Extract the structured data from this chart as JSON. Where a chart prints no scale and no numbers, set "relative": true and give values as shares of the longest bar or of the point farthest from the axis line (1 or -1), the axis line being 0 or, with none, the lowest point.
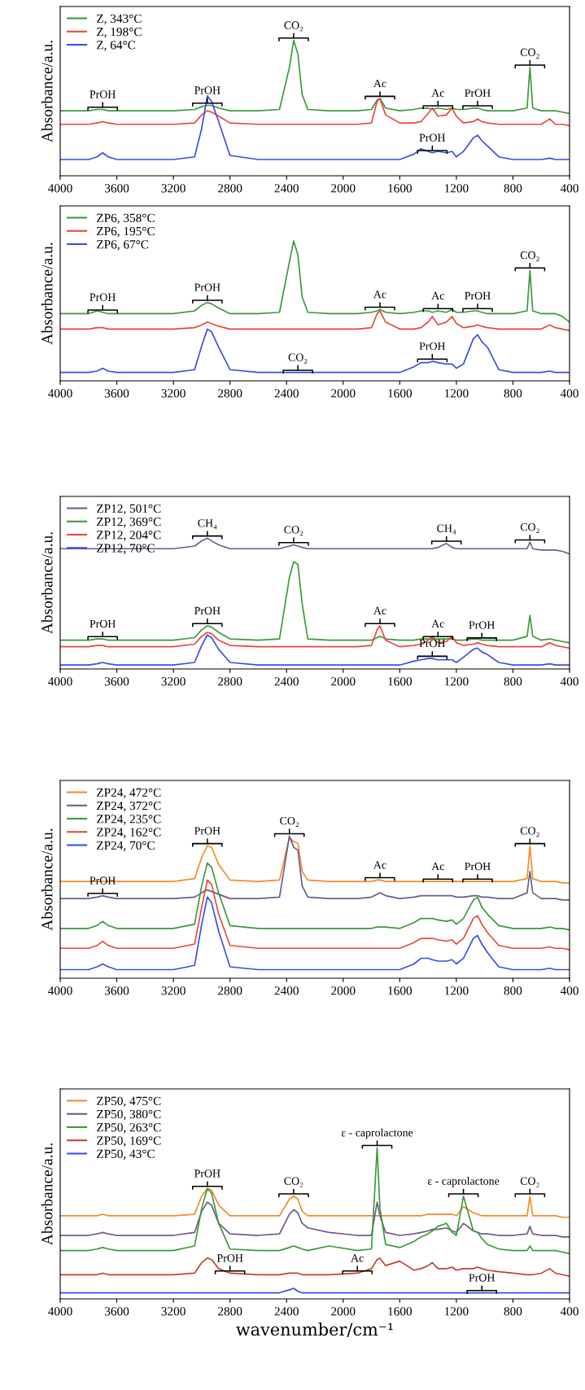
{
  "chart_data": [
    {
      "type": "line",
      "relative": true,
      "ylabel": "Absorbance/a.u.",
      "legend": "top left",
      "xlim": [
        4000,
        400
      ],
      "xticks": [
        4000,
        3600,
        3200,
        2800,
        2400,
        2000,
        1600,
        1200,
        800,
        400
      ],
      "x": [
        4000,
        3800,
        3740,
        3700,
        3660,
        3600,
        3400,
        3200,
        3050,
        3000,
        2960,
        2930,
        2880,
        2800,
        2600,
        2450,
        2380,
        2350,
        2320,
        2290,
        2250,
        2100,
        1900,
        1800,
        1760,
        1740,
        1700,
        1600,
        1500,
        1450,
        1400,
        1370,
        1330,
        1270,
        1230,
        1200,
        1150,
        1080,
        1050,
        1020,
        980,
        900,
        800,
        700,
        680,
        660,
        600,
        540,
        500,
        450,
        400
      ],
      "series": [
        {
          "name": "Z, 343°C",
          "color": "#3a9a3a",
          "values": [
            0.48,
            0.48,
            0.49,
            0.49,
            0.48,
            0.48,
            0.48,
            0.48,
            0.49,
            0.51,
            0.52,
            0.52,
            0.5,
            0.48,
            0.48,
            0.49,
            0.8,
            1.0,
            0.9,
            0.6,
            0.49,
            0.48,
            0.48,
            0.49,
            0.56,
            0.57,
            0.5,
            0.48,
            0.49,
            0.5,
            0.5,
            0.49,
            0.5,
            0.49,
            0.5,
            0.49,
            0.49,
            0.5,
            0.5,
            0.49,
            0.48,
            0.48,
            0.48,
            0.5,
            0.8,
            0.5,
            0.48,
            0.48,
            0.48,
            0.47,
            0.46
          ]
        },
        {
          "name": "Z, 198°C",
          "color": "#e8483a",
          "values": [
            0.38,
            0.38,
            0.39,
            0.4,
            0.39,
            0.38,
            0.38,
            0.38,
            0.39,
            0.45,
            0.48,
            0.47,
            0.44,
            0.39,
            0.38,
            0.38,
            0.38,
            0.38,
            0.38,
            0.38,
            0.38,
            0.38,
            0.38,
            0.39,
            0.55,
            0.57,
            0.45,
            0.39,
            0.39,
            0.4,
            0.46,
            0.5,
            0.44,
            0.45,
            0.5,
            0.44,
            0.39,
            0.4,
            0.42,
            0.4,
            0.39,
            0.38,
            0.38,
            0.38,
            0.38,
            0.38,
            0.38,
            0.42,
            0.38,
            0.38,
            0.37
          ]
        },
        {
          "name": "Z, 64°C",
          "color": "#3a4de8",
          "values": [
            0.12,
            0.12,
            0.14,
            0.17,
            0.14,
            0.12,
            0.12,
            0.12,
            0.14,
            0.35,
            0.59,
            0.55,
            0.4,
            0.15,
            0.12,
            0.12,
            0.12,
            0.12,
            0.12,
            0.12,
            0.12,
            0.12,
            0.12,
            0.12,
            0.12,
            0.12,
            0.12,
            0.12,
            0.16,
            0.2,
            0.18,
            0.17,
            0.18,
            0.17,
            0.18,
            0.14,
            0.18,
            0.28,
            0.3,
            0.26,
            0.22,
            0.14,
            0.12,
            0.12,
            0.12,
            0.12,
            0.12,
            0.13,
            0.12,
            0.12,
            0.12
          ]
        }
      ],
      "annotations": [
        {
          "text": "PrOH",
          "x": 3700,
          "y": 0.49
        },
        {
          "text": "PrOH",
          "x": 2960,
          "y": 0.52
        },
        {
          "text": "CO₂",
          "x": 2350,
          "y": 1.0
        },
        {
          "text": "Ac",
          "x": 1740,
          "y": 0.57
        },
        {
          "text": "Ac",
          "x": 1330,
          "y": 0.5
        },
        {
          "text": "PrOH",
          "x": 1050,
          "y": 0.5
        },
        {
          "text": "CO₂",
          "x": 680,
          "y": 0.8
        },
        {
          "text": "PrOH",
          "x": 1370,
          "y": 0.17
        }
      ]
    },
    {
      "type": "line",
      "relative": true,
      "ylabel": "Absorbance/a.u.",
      "legend": "top left",
      "xlim": [
        4000,
        400
      ],
      "xticks": [
        4000,
        3600,
        3200,
        2800,
        2400,
        2000,
        1600,
        1200,
        800,
        400
      ],
      "x": [
        4000,
        3800,
        3740,
        3700,
        3660,
        3600,
        3400,
        3200,
        3050,
        3000,
        2960,
        2930,
        2880,
        2800,
        2600,
        2450,
        2380,
        2350,
        2320,
        2290,
        2250,
        2100,
        1900,
        1800,
        1760,
        1740,
        1700,
        1600,
        1500,
        1450,
        1400,
        1370,
        1330,
        1270,
        1230,
        1200,
        1150,
        1080,
        1050,
        1020,
        980,
        900,
        800,
        700,
        680,
        660,
        600,
        540,
        500,
        450,
        400
      ],
      "series": [
        {
          "name": "ZP6, 358°C",
          "color": "#3a9a3a",
          "values": [
            0.48,
            0.48,
            0.5,
            0.49,
            0.48,
            0.48,
            0.48,
            0.48,
            0.5,
            0.54,
            0.56,
            0.55,
            0.52,
            0.48,
            0.48,
            0.49,
            0.85,
            1.0,
            0.9,
            0.6,
            0.49,
            0.48,
            0.48,
            0.49,
            0.5,
            0.51,
            0.49,
            0.48,
            0.49,
            0.5,
            0.5,
            0.49,
            0.5,
            0.49,
            0.51,
            0.49,
            0.49,
            0.5,
            0.5,
            0.49,
            0.48,
            0.48,
            0.48,
            0.5,
            0.79,
            0.5,
            0.48,
            0.48,
            0.48,
            0.46,
            0.42
          ]
        },
        {
          "name": "ZP6, 195°C",
          "color": "#e8483a",
          "values": [
            0.37,
            0.37,
            0.38,
            0.38,
            0.37,
            0.37,
            0.37,
            0.37,
            0.38,
            0.4,
            0.42,
            0.41,
            0.39,
            0.37,
            0.37,
            0.37,
            0.37,
            0.37,
            0.37,
            0.37,
            0.37,
            0.37,
            0.37,
            0.38,
            0.48,
            0.5,
            0.42,
            0.37,
            0.37,
            0.38,
            0.42,
            0.46,
            0.4,
            0.42,
            0.46,
            0.41,
            0.38,
            0.39,
            0.4,
            0.39,
            0.38,
            0.37,
            0.37,
            0.37,
            0.37,
            0.37,
            0.37,
            0.4,
            0.38,
            0.37,
            0.36
          ]
        },
        {
          "name": "ZP6, 67°C",
          "color": "#3a4de8",
          "values": [
            0.06,
            0.06,
            0.07,
            0.09,
            0.07,
            0.06,
            0.06,
            0.06,
            0.08,
            0.25,
            0.37,
            0.35,
            0.24,
            0.08,
            0.06,
            0.06,
            0.06,
            0.06,
            0.06,
            0.06,
            0.06,
            0.06,
            0.06,
            0.06,
            0.06,
            0.06,
            0.06,
            0.06,
            0.1,
            0.13,
            0.13,
            0.14,
            0.13,
            0.12,
            0.12,
            0.09,
            0.12,
            0.3,
            0.33,
            0.28,
            0.24,
            0.08,
            0.06,
            0.06,
            0.06,
            0.06,
            0.06,
            0.07,
            0.06,
            0.06,
            0.06
          ]
        }
      ],
      "annotations": [
        {
          "text": "PrOH",
          "x": 3700,
          "y": 0.49
        },
        {
          "text": "PrOH",
          "x": 2960,
          "y": 0.56
        },
        {
          "text": "CO₂",
          "x": 2320,
          "y": 0.06
        },
        {
          "text": "Ac",
          "x": 1740,
          "y": 0.51
        },
        {
          "text": "Ac",
          "x": 1330,
          "y": 0.5
        },
        {
          "text": "PrOH",
          "x": 1050,
          "y": 0.5
        },
        {
          "text": "CO₂",
          "x": 680,
          "y": 0.79
        },
        {
          "text": "PrOH",
          "x": 1370,
          "y": 0.14
        }
      ]
    },
    {
      "type": "line",
      "relative": true,
      "ylabel": "Absorbance/a.u.",
      "legend": "top left",
      "xlim": [
        4000,
        400
      ],
      "xticks": [
        4000,
        3600,
        3200,
        2800,
        2400,
        2000,
        1600,
        1200,
        800,
        400
      ],
      "x": [
        4000,
        3800,
        3740,
        3700,
        3660,
        3600,
        3400,
        3200,
        3050,
        3000,
        2960,
        2930,
        2880,
        2800,
        2600,
        2450,
        2380,
        2350,
        2320,
        2290,
        2250,
        2100,
        1900,
        1800,
        1760,
        1740,
        1700,
        1600,
        1500,
        1450,
        1400,
        1370,
        1330,
        1270,
        1230,
        1200,
        1150,
        1080,
        1050,
        1020,
        980,
        900,
        800,
        700,
        680,
        660,
        600,
        540,
        500,
        450,
        400
      ],
      "series": [
        {
          "name": "ZP12, 501°C",
          "color": "#6e5a8c",
          "values": [
            0.92,
            0.92,
            0.92,
            0.92,
            0.92,
            0.92,
            0.92,
            0.92,
            0.94,
            0.98,
            1.0,
            0.98,
            0.95,
            0.92,
            0.92,
            0.92,
            0.94,
            0.95,
            0.94,
            0.93,
            0.92,
            0.92,
            0.92,
            0.92,
            0.92,
            0.92,
            0.92,
            0.92,
            0.92,
            0.92,
            0.92,
            0.92,
            0.93,
            0.96,
            0.93,
            0.92,
            0.92,
            0.92,
            0.92,
            0.92,
            0.92,
            0.92,
            0.92,
            0.92,
            0.97,
            0.92,
            0.91,
            0.91,
            0.91,
            0.9,
            0.88
          ]
        },
        {
          "name": "ZP12, 369°C",
          "color": "#3a9a3a",
          "values": [
            0.22,
            0.22,
            0.23,
            0.23,
            0.22,
            0.22,
            0.22,
            0.22,
            0.24,
            0.3,
            0.33,
            0.32,
            0.28,
            0.23,
            0.22,
            0.23,
            0.7,
            0.82,
            0.8,
            0.5,
            0.23,
            0.22,
            0.22,
            0.22,
            0.24,
            0.25,
            0.23,
            0.22,
            0.22,
            0.23,
            0.23,
            0.23,
            0.23,
            0.23,
            0.23,
            0.22,
            0.22,
            0.23,
            0.23,
            0.22,
            0.22,
            0.22,
            0.22,
            0.25,
            0.41,
            0.25,
            0.22,
            0.23,
            0.22,
            0.21,
            0.2
          ]
        },
        {
          "name": "ZP12, 204°C",
          "color": "#e8483a",
          "values": [
            0.17,
            0.17,
            0.18,
            0.18,
            0.17,
            0.17,
            0.17,
            0.17,
            0.19,
            0.25,
            0.28,
            0.27,
            0.22,
            0.18,
            0.17,
            0.17,
            0.17,
            0.17,
            0.17,
            0.17,
            0.17,
            0.17,
            0.17,
            0.18,
            0.3,
            0.33,
            0.22,
            0.17,
            0.18,
            0.19,
            0.22,
            0.25,
            0.2,
            0.21,
            0.25,
            0.2,
            0.18,
            0.19,
            0.2,
            0.19,
            0.18,
            0.17,
            0.17,
            0.17,
            0.17,
            0.17,
            0.17,
            0.2,
            0.18,
            0.17,
            0.16
          ]
        },
        {
          "name": "ZP12, 70°C",
          "color": "#3a4de8",
          "values": [
            0.03,
            0.03,
            0.04,
            0.05,
            0.04,
            0.03,
            0.03,
            0.03,
            0.05,
            0.18,
            0.26,
            0.24,
            0.15,
            0.05,
            0.03,
            0.03,
            0.03,
            0.03,
            0.03,
            0.03,
            0.03,
            0.03,
            0.03,
            0.03,
            0.03,
            0.03,
            0.03,
            0.03,
            0.06,
            0.07,
            0.08,
            0.08,
            0.07,
            0.07,
            0.07,
            0.05,
            0.09,
            0.15,
            0.16,
            0.13,
            0.11,
            0.05,
            0.03,
            0.03,
            0.03,
            0.03,
            0.03,
            0.04,
            0.03,
            0.03,
            0.03
          ]
        }
      ],
      "annotations": [
        {
          "text": "CH₄",
          "x": 2960,
          "y": 1.0
        },
        {
          "text": "CO₂",
          "x": 2350,
          "y": 0.95
        },
        {
          "text": "CH₄",
          "x": 1270,
          "y": 0.96
        },
        {
          "text": "CO₂",
          "x": 680,
          "y": 0.97
        },
        {
          "text": "PrOH",
          "x": 3700,
          "y": 0.23
        },
        {
          "text": "PrOH",
          "x": 2960,
          "y": 0.33
        },
        {
          "text": "Ac",
          "x": 1740,
          "y": 0.33
        },
        {
          "text": "Ac",
          "x": 1330,
          "y": 0.23
        },
        {
          "text": "PrOH",
          "x": 1020,
          "y": 0.22
        },
        {
          "text": "PrOH",
          "x": 1370,
          "y": 0.08
        }
      ]
    },
    {
      "type": "line",
      "relative": true,
      "ylabel": "Absorbance/a.u.",
      "legend": "top left",
      "xlim": [
        4000,
        400
      ],
      "xticks": [
        4000,
        3600,
        3200,
        2800,
        2400,
        2000,
        1600,
        1200,
        800,
        400
      ],
      "x": [
        4000,
        3800,
        3740,
        3700,
        3660,
        3600,
        3400,
        3200,
        3050,
        3000,
        2960,
        2930,
        2880,
        2800,
        2600,
        2450,
        2380,
        2350,
        2320,
        2290,
        2250,
        2100,
        1900,
        1800,
        1760,
        1740,
        1700,
        1600,
        1500,
        1450,
        1400,
        1370,
        1330,
        1270,
        1230,
        1200,
        1150,
        1080,
        1050,
        1020,
        980,
        900,
        800,
        700,
        680,
        660,
        600,
        540,
        500,
        450,
        400
      ],
      "series": [
        {
          "name": "ZP24, 472°C",
          "color": "#f28c28",
          "values": [
            0.68,
            0.68,
            0.68,
            0.68,
            0.68,
            0.68,
            0.68,
            0.68,
            0.7,
            0.85,
            0.93,
            0.92,
            0.8,
            0.69,
            0.68,
            0.69,
            0.99,
            0.96,
            0.95,
            0.75,
            0.69,
            0.68,
            0.68,
            0.68,
            0.69,
            0.69,
            0.68,
            0.68,
            0.68,
            0.68,
            0.68,
            0.68,
            0.68,
            0.68,
            0.68,
            0.68,
            0.68,
            0.68,
            0.68,
            0.68,
            0.68,
            0.68,
            0.68,
            0.7,
            0.93,
            0.7,
            0.68,
            0.68,
            0.68,
            0.67,
            0.67
          ]
        },
        {
          "name": "ZP24, 372°C",
          "color": "#6e5a8c",
          "values": [
            0.56,
            0.56,
            0.57,
            0.58,
            0.57,
            0.56,
            0.56,
            0.56,
            0.57,
            0.6,
            0.62,
            0.61,
            0.59,
            0.56,
            0.56,
            0.57,
            1.0,
            0.92,
            0.9,
            0.65,
            0.57,
            0.56,
            0.56,
            0.57,
            0.59,
            0.6,
            0.58,
            0.56,
            0.57,
            0.58,
            0.58,
            0.58,
            0.58,
            0.58,
            0.58,
            0.57,
            0.57,
            0.58,
            0.58,
            0.57,
            0.57,
            0.56,
            0.56,
            0.6,
            0.75,
            0.6,
            0.56,
            0.56,
            0.56,
            0.55,
            0.55
          ]
        },
        {
          "name": "ZP24, 235°C",
          "color": "#3a9a3a",
          "values": [
            0.35,
            0.35,
            0.37,
            0.4,
            0.37,
            0.35,
            0.35,
            0.35,
            0.38,
            0.65,
            0.81,
            0.78,
            0.6,
            0.37,
            0.35,
            0.35,
            0.35,
            0.35,
            0.35,
            0.35,
            0.35,
            0.35,
            0.35,
            0.35,
            0.36,
            0.36,
            0.36,
            0.35,
            0.39,
            0.42,
            0.42,
            0.42,
            0.41,
            0.4,
            0.41,
            0.38,
            0.42,
            0.55,
            0.57,
            0.5,
            0.45,
            0.37,
            0.35,
            0.35,
            0.35,
            0.35,
            0.35,
            0.36,
            0.35,
            0.35,
            0.34
          ]
        },
        {
          "name": "ZP24, 162°C",
          "color": "#e8483a",
          "values": [
            0.21,
            0.21,
            0.23,
            0.26,
            0.23,
            0.21,
            0.21,
            0.21,
            0.24,
            0.5,
            0.69,
            0.66,
            0.45,
            0.23,
            0.21,
            0.21,
            0.21,
            0.21,
            0.21,
            0.21,
            0.21,
            0.21,
            0.21,
            0.21,
            0.21,
            0.21,
            0.21,
            0.21,
            0.25,
            0.28,
            0.28,
            0.28,
            0.27,
            0.26,
            0.27,
            0.24,
            0.28,
            0.42,
            0.44,
            0.38,
            0.32,
            0.23,
            0.21,
            0.21,
            0.21,
            0.21,
            0.21,
            0.22,
            0.21,
            0.21,
            0.2
          ]
        },
        {
          "name": "ZP24, 70°C",
          "color": "#3a4de8",
          "values": [
            0.06,
            0.06,
            0.08,
            0.1,
            0.08,
            0.06,
            0.06,
            0.06,
            0.09,
            0.38,
            0.57,
            0.53,
            0.33,
            0.08,
            0.06,
            0.06,
            0.06,
            0.06,
            0.06,
            0.06,
            0.06,
            0.06,
            0.06,
            0.06,
            0.06,
            0.06,
            0.06,
            0.06,
            0.1,
            0.14,
            0.14,
            0.13,
            0.12,
            0.12,
            0.13,
            0.1,
            0.14,
            0.28,
            0.3,
            0.24,
            0.18,
            0.08,
            0.06,
            0.06,
            0.06,
            0.06,
            0.06,
            0.07,
            0.06,
            0.06,
            0.06
          ]
        }
      ],
      "annotations": [
        {
          "text": "PrOH",
          "x": 3700,
          "y": 0.58
        },
        {
          "text": "PrOH",
          "x": 2960,
          "y": 0.93
        },
        {
          "text": "CO₂",
          "x": 2380,
          "y": 1.0
        },
        {
          "text": "Ac",
          "x": 1740,
          "y": 0.69
        },
        {
          "text": "Ac",
          "x": 1330,
          "y": 0.68
        },
        {
          "text": "PrOH",
          "x": 1050,
          "y": 0.68
        },
        {
          "text": "CO₂",
          "x": 680,
          "y": 0.93
        }
      ]
    },
    {
      "type": "line",
      "relative": true,
      "ylabel": "Absorbance/a.u.",
      "xlabel": "wavenumber/cm⁻¹",
      "legend": "top left",
      "xlim": [
        4000,
        400
      ],
      "xticks": [
        4000,
        3600,
        3200,
        2800,
        2400,
        2000,
        1600,
        1200,
        800,
        400
      ],
      "x": [
        4000,
        3800,
        3740,
        3700,
        3660,
        3600,
        3400,
        3200,
        3050,
        3000,
        2960,
        2930,
        2880,
        2800,
        2600,
        2450,
        2380,
        2350,
        2320,
        2290,
        2250,
        2100,
        1900,
        1800,
        1760,
        1740,
        1700,
        1600,
        1500,
        1450,
        1400,
        1370,
        1330,
        1270,
        1230,
        1200,
        1150,
        1080,
        1050,
        1020,
        980,
        900,
        800,
        700,
        680,
        660,
        600,
        540,
        500,
        450,
        400
      ],
      "series": [
        {
          "name": "ZP50, 475°C",
          "color": "#f28c28",
          "values": [
            0.55,
            0.55,
            0.55,
            0.56,
            0.55,
            0.55,
            0.55,
            0.55,
            0.56,
            0.68,
            0.73,
            0.72,
            0.62,
            0.55,
            0.55,
            0.55,
            0.66,
            0.68,
            0.66,
            0.58,
            0.55,
            0.55,
            0.55,
            0.55,
            0.55,
            0.55,
            0.55,
            0.55,
            0.55,
            0.55,
            0.56,
            0.56,
            0.56,
            0.56,
            0.56,
            0.55,
            0.61,
            0.57,
            0.56,
            0.55,
            0.55,
            0.55,
            0.55,
            0.55,
            0.68,
            0.55,
            0.55,
            0.55,
            0.55,
            0.54,
            0.54
          ]
        },
        {
          "name": "ZP50, 380°C",
          "color": "#6e5a8c",
          "values": [
            0.42,
            0.42,
            0.43,
            0.44,
            0.43,
            0.42,
            0.42,
            0.42,
            0.44,
            0.58,
            0.64,
            0.62,
            0.5,
            0.43,
            0.42,
            0.43,
            0.56,
            0.59,
            0.57,
            0.5,
            0.47,
            0.44,
            0.42,
            0.42,
            0.64,
            0.55,
            0.44,
            0.42,
            0.43,
            0.44,
            0.45,
            0.46,
            0.46,
            0.47,
            0.45,
            0.44,
            0.5,
            0.45,
            0.44,
            0.43,
            0.43,
            0.42,
            0.42,
            0.43,
            0.48,
            0.43,
            0.42,
            0.42,
            0.42,
            0.41,
            0.41
          ]
        },
        {
          "name": "ZP50, 263°C",
          "color": "#3a9a3a",
          "values": [
            0.32,
            0.32,
            0.33,
            0.34,
            0.33,
            0.32,
            0.32,
            0.32,
            0.35,
            0.6,
            0.73,
            0.7,
            0.5,
            0.33,
            0.32,
            0.32,
            0.34,
            0.35,
            0.34,
            0.33,
            0.32,
            0.35,
            0.32,
            0.33,
            1.0,
            0.6,
            0.36,
            0.34,
            0.38,
            0.41,
            0.43,
            0.45,
            0.48,
            0.5,
            0.44,
            0.42,
            0.68,
            0.45,
            0.44,
            0.4,
            0.36,
            0.33,
            0.32,
            0.32,
            0.35,
            0.32,
            0.32,
            0.32,
            0.32,
            0.31,
            0.3
          ]
        },
        {
          "name": "ZP50, 169°C",
          "color": "#c8402e",
          "values": [
            0.16,
            0.16,
            0.16,
            0.17,
            0.16,
            0.16,
            0.16,
            0.16,
            0.17,
            0.24,
            0.27,
            0.26,
            0.2,
            0.17,
            0.16,
            0.16,
            0.17,
            0.17,
            0.17,
            0.16,
            0.16,
            0.16,
            0.17,
            0.2,
            0.26,
            0.27,
            0.22,
            0.25,
            0.19,
            0.2,
            0.22,
            0.24,
            0.2,
            0.2,
            0.21,
            0.19,
            0.2,
            0.2,
            0.21,
            0.2,
            0.19,
            0.18,
            0.17,
            0.16,
            0.16,
            0.16,
            0.17,
            0.2,
            0.17,
            0.16,
            0.15
          ]
        },
        {
          "name": "ZP50, 43°C",
          "color": "#3a4de8",
          "values": [
            0.04,
            0.04,
            0.04,
            0.04,
            0.04,
            0.04,
            0.04,
            0.04,
            0.04,
            0.04,
            0.04,
            0.04,
            0.04,
            0.04,
            0.04,
            0.04,
            0.06,
            0.07,
            0.05,
            0.04,
            0.04,
            0.04,
            0.04,
            0.04,
            0.04,
            0.04,
            0.04,
            0.04,
            0.04,
            0.04,
            0.04,
            0.04,
            0.04,
            0.04,
            0.04,
            0.04,
            0.04,
            0.04,
            0.04,
            0.04,
            0.04,
            0.04,
            0.04,
            0.04,
            0.04,
            0.04,
            0.04,
            0.04,
            0.04,
            0.04,
            0.04
          ]
        }
      ],
      "annotations": [
        {
          "text": "ε - caprolactone",
          "x": 1760,
          "y": 1.0
        },
        {
          "text": "PrOH",
          "x": 2960,
          "y": 0.73
        },
        {
          "text": "CO₂",
          "x": 2350,
          "y": 0.68
        },
        {
          "text": "ε - caprolactone",
          "x": 1150,
          "y": 0.68
        },
        {
          "text": "CO₂",
          "x": 680,
          "y": 0.68
        },
        {
          "text": "PrOH",
          "x": 2800,
          "y": 0.17
        },
        {
          "text": "Ac",
          "x": 1900,
          "y": 0.17
        },
        {
          "text": "PrOH",
          "x": 1020,
          "y": 0.04
        }
      ]
    }
  ]
}
